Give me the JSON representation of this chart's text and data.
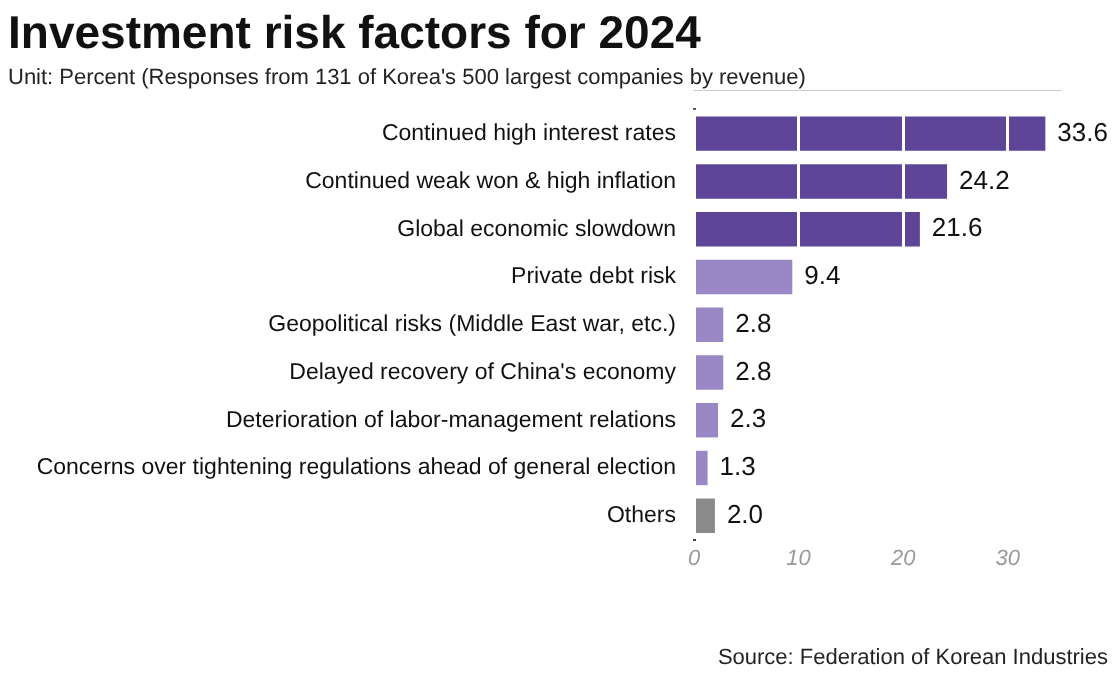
{
  "chart_data": {
    "type": "bar",
    "orientation": "horizontal",
    "title": "Investment risk factors for 2024",
    "subtitle": "Unit: Percent (Responses from 131 of Korea's 500 largest companies by revenue)",
    "categories": [
      "Continued high interest rates",
      "Continued weak won & high inflation",
      "Global economic slowdown",
      "Private debt risk",
      "Geopolitical risks (Middle East war, etc.)",
      "Delayed recovery of China's economy",
      "Deterioration of labor-management relations",
      "Concerns over tightening regulations ahead of general election",
      "Others"
    ],
    "values": [
      33.6,
      24.2,
      21.6,
      9.4,
      2.8,
      2.8,
      2.3,
      1.3,
      2.0
    ],
    "value_labels": [
      "33.6",
      "24.2",
      "21.6",
      "9.4",
      "2.8",
      "2.8",
      "2.3",
      "1.3",
      "2.0"
    ],
    "colors": [
      "#5e4597",
      "#5e4597",
      "#5e4597",
      "#9a88c6",
      "#9a88c6",
      "#9a88c6",
      "#9a88c6",
      "#9a88c6",
      "#8a8a8a"
    ],
    "xlim": [
      0,
      35
    ],
    "xticks": [
      0,
      10,
      20,
      30
    ],
    "grid": "x",
    "legend": false,
    "annotations": [
      "Source: Federation of Korean Industries"
    ]
  }
}
